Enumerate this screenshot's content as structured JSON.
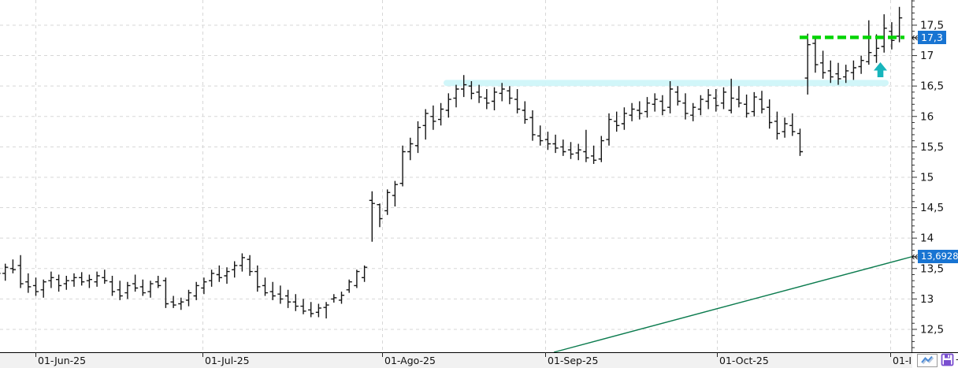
{
  "chart_data": {
    "type": "ohlc",
    "bar_interval": "daily",
    "grid": true,
    "legend": false,
    "bar_color": "#141414",
    "x_axis": {
      "tick_labels": [
        "01-Jun-25",
        "01-Jul-25",
        "01-Ago-25",
        "01-Sep-25",
        "01-Oct-25",
        "01-I"
      ]
    },
    "y_axis": {
      "min": 12.5,
      "max": 17.5,
      "major_step": 0.5,
      "minor_step": 0.1,
      "decimal_separator": ",",
      "tick_labels": [
        {
          "value": 17.5,
          "label": "17,5"
        },
        {
          "value": 17.0,
          "label": "17"
        },
        {
          "value": 16.5,
          "label": "16,5"
        },
        {
          "value": 16.0,
          "label": "16"
        },
        {
          "value": 15.5,
          "label": "15,5"
        },
        {
          "value": 15.0,
          "label": "15"
        },
        {
          "value": 14.5,
          "label": "14,5"
        },
        {
          "value": 14.0,
          "label": "14"
        },
        {
          "value": 13.5,
          "label": "13,5"
        },
        {
          "value": 13.0,
          "label": "13"
        },
        {
          "value": 12.5,
          "label": "12,5"
        }
      ]
    },
    "bars_ohlc": [
      [
        13.45,
        13.52,
        13.3,
        13.42
      ],
      [
        13.42,
        13.58,
        13.3,
        13.52
      ],
      [
        13.5,
        13.65,
        13.42,
        13.48
      ],
      [
        13.55,
        13.72,
        13.18,
        13.25
      ],
      [
        13.28,
        13.42,
        13.1,
        13.2
      ],
      [
        13.22,
        13.35,
        13.05,
        13.12
      ],
      [
        13.15,
        13.32,
        13.02,
        13.28
      ],
      [
        13.3,
        13.45,
        13.18,
        13.35
      ],
      [
        13.32,
        13.4,
        13.12,
        13.22
      ],
      [
        13.25,
        13.38,
        13.15,
        13.3
      ],
      [
        13.3,
        13.42,
        13.2,
        13.35
      ],
      [
        13.35,
        13.44,
        13.22,
        13.28
      ],
      [
        13.3,
        13.4,
        13.18,
        13.32
      ],
      [
        13.28,
        13.45,
        13.2,
        13.38
      ],
      [
        13.35,
        13.48,
        13.25,
        13.3
      ],
      [
        13.28,
        13.38,
        13.05,
        13.12
      ],
      [
        13.15,
        13.3,
        12.98,
        13.05
      ],
      [
        13.1,
        13.28,
        13.0,
        13.22
      ],
      [
        13.25,
        13.4,
        13.12,
        13.18
      ],
      [
        13.2,
        13.32,
        13.05,
        13.1
      ],
      [
        13.12,
        13.3,
        13.02,
        13.25
      ],
      [
        13.28,
        13.38,
        13.18,
        13.22
      ],
      [
        13.3,
        13.35,
        12.85,
        12.92
      ],
      [
        12.95,
        13.05,
        12.85,
        12.9
      ],
      [
        12.92,
        13.02,
        12.82,
        12.95
      ],
      [
        12.98,
        13.15,
        12.88,
        13.1
      ],
      [
        13.05,
        13.28,
        12.98,
        13.22
      ],
      [
        13.18,
        13.35,
        13.08,
        13.28
      ],
      [
        13.3,
        13.48,
        13.2,
        13.42
      ],
      [
        13.4,
        13.55,
        13.28,
        13.35
      ],
      [
        13.38,
        13.52,
        13.25,
        13.45
      ],
      [
        13.48,
        13.62,
        13.35,
        13.55
      ],
      [
        13.55,
        13.75,
        13.45,
        13.68
      ],
      [
        13.65,
        13.72,
        13.38,
        13.45
      ],
      [
        13.45,
        13.55,
        13.12,
        13.2
      ],
      [
        13.22,
        13.35,
        13.05,
        13.1
      ],
      [
        13.12,
        13.28,
        12.98,
        13.05
      ],
      [
        13.08,
        13.22,
        12.92,
        13.0
      ],
      [
        13.05,
        13.15,
        12.85,
        12.95
      ],
      [
        12.95,
        13.08,
        12.8,
        12.88
      ],
      [
        12.88,
        13.0,
        12.75,
        12.8
      ],
      [
        12.82,
        12.95,
        12.7,
        12.76
      ],
      [
        12.78,
        12.92,
        12.7,
        12.85
      ],
      [
        12.86,
        12.95,
        12.68,
        12.9
      ],
      [
        13.0,
        13.08,
        12.94,
        13.02
      ],
      [
        12.98,
        13.12,
        12.92,
        13.06
      ],
      [
        13.15,
        13.32,
        13.1,
        13.28
      ],
      [
        13.22,
        13.48,
        13.18,
        13.45
      ],
      [
        13.35,
        13.55,
        13.28,
        13.52
      ],
      [
        14.62,
        14.77,
        13.94,
        14.57
      ],
      [
        14.55,
        14.57,
        14.18,
        14.32
      ],
      [
        14.45,
        14.8,
        14.38,
        14.75
      ],
      [
        14.7,
        14.94,
        14.52,
        14.88
      ],
      [
        14.9,
        15.52,
        14.85,
        15.42
      ],
      [
        15.42,
        15.65,
        15.28,
        15.55
      ],
      [
        15.52,
        15.92,
        15.4,
        15.82
      ],
      [
        15.85,
        16.12,
        15.62,
        16.05
      ],
      [
        16.0,
        16.18,
        15.78,
        15.92
      ],
      [
        15.95,
        16.22,
        15.85,
        16.12
      ],
      [
        16.1,
        16.38,
        15.98,
        16.28
      ],
      [
        16.3,
        16.52,
        16.15,
        16.45
      ],
      [
        16.45,
        16.68,
        16.32,
        16.52
      ],
      [
        16.5,
        16.58,
        16.28,
        16.38
      ],
      [
        16.4,
        16.52,
        16.22,
        16.32
      ],
      [
        16.3,
        16.45,
        16.12,
        16.22
      ],
      [
        16.25,
        16.48,
        16.1,
        16.4
      ],
      [
        16.38,
        16.55,
        16.25,
        16.45
      ],
      [
        16.42,
        16.5,
        16.2,
        16.3
      ],
      [
        16.28,
        16.45,
        16.05,
        16.12
      ],
      [
        16.1,
        16.25,
        15.88,
        15.95
      ],
      [
        15.98,
        16.1,
        15.6,
        15.7
      ],
      [
        15.68,
        15.85,
        15.52,
        15.6
      ],
      [
        15.62,
        15.75,
        15.45,
        15.55
      ],
      [
        15.55,
        15.7,
        15.4,
        15.48
      ],
      [
        15.5,
        15.62,
        15.35,
        15.42
      ],
      [
        15.45,
        15.58,
        15.3,
        15.38
      ],
      [
        15.4,
        15.55,
        15.28,
        15.45
      ],
      [
        15.42,
        15.78,
        15.25,
        15.32
      ],
      [
        15.35,
        15.52,
        15.22,
        15.28
      ],
      [
        15.3,
        15.68,
        15.25,
        15.6
      ],
      [
        15.62,
        16.05,
        15.52,
        15.95
      ],
      [
        15.92,
        16.08,
        15.75,
        15.85
      ],
      [
        15.88,
        16.15,
        15.78,
        16.05
      ],
      [
        16.02,
        16.22,
        15.92,
        16.12
      ],
      [
        16.1,
        16.25,
        15.95,
        16.05
      ],
      [
        16.08,
        16.32,
        15.98,
        16.22
      ],
      [
        16.2,
        16.38,
        16.08,
        16.28
      ],
      [
        16.25,
        16.35,
        16.02,
        16.1
      ],
      [
        16.15,
        16.58,
        16.05,
        16.45
      ],
      [
        16.4,
        16.5,
        16.18,
        16.25
      ],
      [
        16.22,
        16.38,
        15.95,
        16.05
      ],
      [
        16.02,
        16.22,
        15.92,
        16.15
      ],
      [
        16.12,
        16.35,
        16.02,
        16.28
      ],
      [
        16.25,
        16.45,
        16.12,
        16.35
      ],
      [
        16.3,
        16.45,
        16.08,
        16.18
      ],
      [
        16.22,
        16.48,
        16.12,
        16.4
      ],
      [
        16.1,
        16.62,
        16.05,
        16.3
      ],
      [
        16.28,
        16.5,
        16.15,
        16.22
      ],
      [
        16.2,
        16.36,
        15.98,
        16.05
      ],
      [
        16.08,
        16.4,
        16.0,
        16.32
      ],
      [
        16.28,
        16.42,
        16.05,
        16.12
      ],
      [
        16.15,
        16.28,
        15.8,
        15.9
      ],
      [
        15.92,
        16.08,
        15.62,
        15.72
      ],
      [
        15.75,
        15.98,
        15.65,
        15.88
      ],
      [
        15.85,
        16.05,
        15.68,
        15.75
      ],
      [
        15.72,
        15.8,
        15.35,
        15.42
      ],
      [
        16.63,
        17.36,
        16.36,
        17.18
      ],
      [
        17.2,
        17.3,
        16.72,
        16.85
      ],
      [
        16.88,
        17.08,
        16.62,
        16.72
      ],
      [
        16.75,
        16.92,
        16.55,
        16.65
      ],
      [
        16.7,
        16.88,
        16.52,
        16.62
      ],
      [
        16.65,
        16.85,
        16.55,
        16.75
      ],
      [
        16.72,
        16.92,
        16.6,
        16.8
      ],
      [
        16.82,
        17.0,
        16.7,
        16.92
      ],
      [
        16.9,
        17.58,
        16.85,
        17.05
      ],
      [
        17.0,
        17.35,
        16.88,
        17.12
      ],
      [
        17.15,
        17.68,
        17.05,
        17.45
      ],
      [
        17.4,
        17.55,
        17.1,
        17.25
      ],
      [
        17.32,
        17.8,
        17.22,
        17.62
      ]
    ],
    "overlays": {
      "resistance_line": {
        "price": 17.3,
        "style": "dashed",
        "color": "#00d400",
        "tag_label": "17,3"
      },
      "trend_line": {
        "value_at_right_edge": 13.6928,
        "color": "#0b7b4e",
        "tag_label": "13,6928"
      },
      "highlight_band": {
        "price": 16.55,
        "color": "#cdf5f8"
      },
      "signal_arrow": {
        "direction": "up",
        "color": "#17b5bc",
        "near_price": 16.75
      }
    }
  },
  "price_axis": {
    "tag_bg": "#1874d2",
    "tag_text_color": "#ffffff"
  },
  "corner_toolbar": {
    "buttons": [
      {
        "name": "line-chart-button",
        "icon": "zigzag-line-icon"
      },
      {
        "name": "save-button",
        "icon": "floppy-disk-icon"
      }
    ],
    "overflow_label": "-"
  }
}
